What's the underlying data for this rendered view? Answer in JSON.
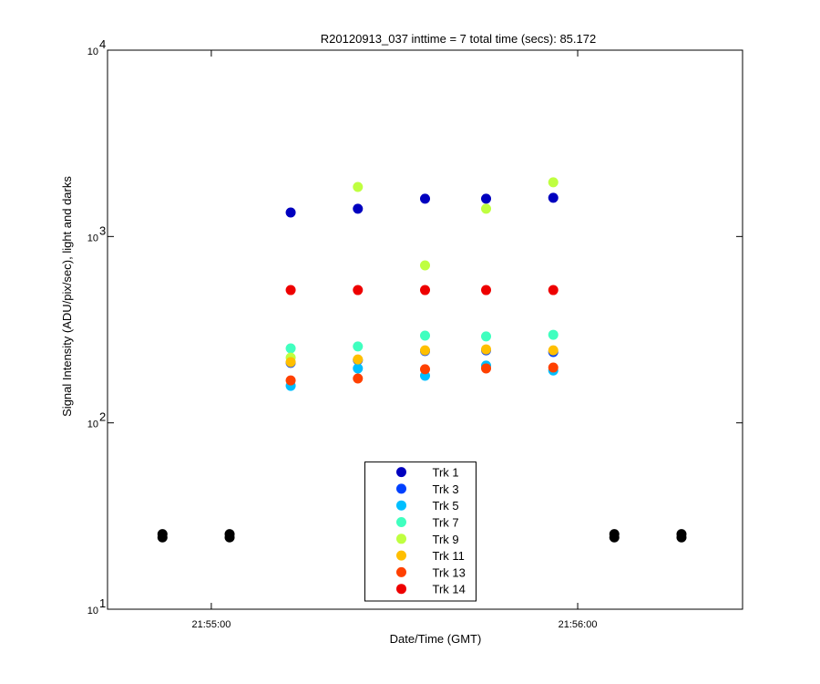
{
  "chart_data": {
    "type": "scatter",
    "title": "R20120913_037 inttime = 7 total time (secs): 85.172",
    "x_label": "Date/Time (GMT)",
    "y_label": "Signal Intensity (ADU/pix/sec), light and darks",
    "x": [
      "21:54:52",
      "21:55:03",
      "21:55:13",
      "21:55:24",
      "21:55:35",
      "21:55:45",
      "21:55:56",
      "21:56:06",
      "21:56:17"
    ],
    "xlim": [
      "21:54:43",
      "21:56:27"
    ],
    "xticks": [
      "21:55:00",
      "21:56:00"
    ],
    "ylim": [
      10,
      10000
    ],
    "yticks": [
      {
        "value": 10,
        "label": "10",
        "exponent": "1"
      },
      {
        "value": 100,
        "label": "10",
        "exponent": "2"
      },
      {
        "value": 1000,
        "label": "10",
        "exponent": "3"
      },
      {
        "value": 10000,
        "label": "10",
        "exponent": "4"
      }
    ],
    "log_y": true,
    "legend": "bottom",
    "series": [
      {
        "color": "#000000",
        "values": [
          25.3,
          25.3,
          null,
          null,
          null,
          null,
          null,
          25.3,
          25.3
        ]
      },
      {
        "color": "#000000",
        "values": [
          24.3,
          24.3,
          null,
          null,
          null,
          null,
          null,
          24.3,
          24.3
        ]
      },
      {
        "name": "Trk 1",
        "color": "#0000bf",
        "values": [
          null,
          null,
          1346,
          1409,
          1596,
          1596,
          1614,
          null,
          null
        ]
      },
      {
        "name": "Trk 3",
        "color": "#0040ff",
        "values": [
          null,
          null,
          210,
          217,
          243,
          245,
          240,
          null,
          null
        ]
      },
      {
        "name": "Trk 5",
        "color": "#00bfff",
        "values": [
          null,
          null,
          158,
          196,
          179,
          203,
          191,
          null,
          null
        ]
      },
      {
        "name": "Trk 7",
        "color": "#40ffbf",
        "values": [
          null,
          null,
          251,
          257,
          294,
          291,
          297,
          null,
          null
        ]
      },
      {
        "name": "Trk 9",
        "color": "#bfff40",
        "values": [
          null,
          null,
          224,
          1845,
          700,
          1409,
          1954,
          null,
          null
        ]
      },
      {
        "name": "Trk 11",
        "color": "#ffbf00",
        "values": [
          null,
          null,
          212,
          219,
          245,
          248,
          245,
          null,
          null
        ]
      },
      {
        "name": "Trk 13",
        "color": "#ff4000",
        "values": [
          null,
          null,
          169,
          173,
          194,
          196,
          198,
          null,
          null
        ]
      },
      {
        "name": "Trk 14",
        "color": "#ee0000",
        "values": [
          null,
          null,
          516,
          516,
          516,
          516,
          516,
          null,
          null
        ]
      }
    ]
  }
}
